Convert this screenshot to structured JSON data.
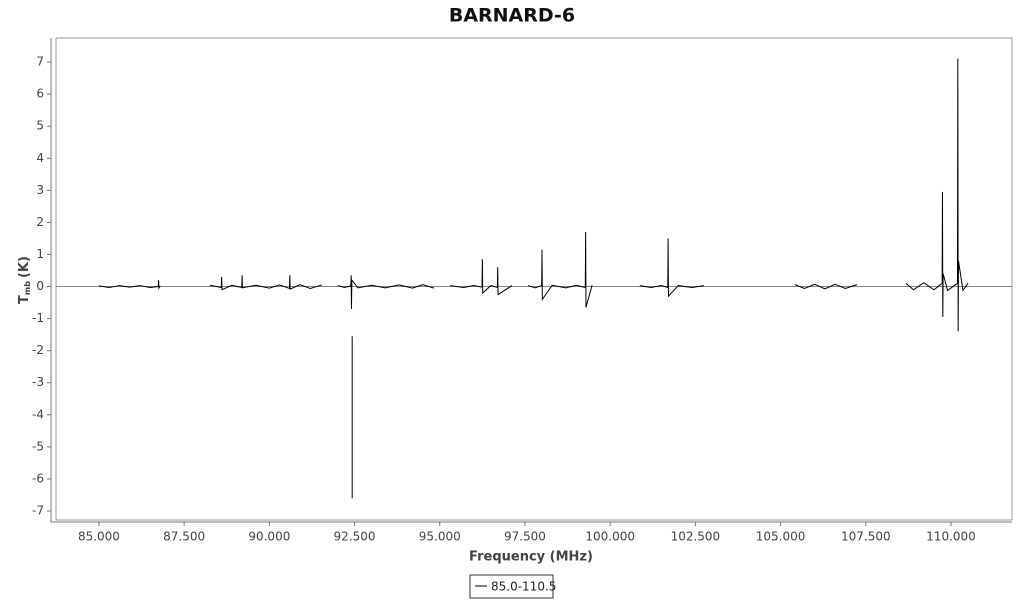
{
  "chart_data": {
    "type": "line",
    "title": "BARNARD-6",
    "x_label": "Frequency (MHz)",
    "y_label": "T",
    "y_label_sub": "mb",
    "y_label_unit": "(K)",
    "xlim": [
      83.74,
      111.79
    ],
    "ylim": [
      -7.28,
      7.75
    ],
    "xticks": [
      {
        "value": 85,
        "label": "85.000"
      },
      {
        "value": 87.5,
        "label": "87.500"
      },
      {
        "value": 90,
        "label": "90.000"
      },
      {
        "value": 92.5,
        "label": "92.500"
      },
      {
        "value": 95,
        "label": "95.000"
      },
      {
        "value": 97.5,
        "label": "97.500"
      },
      {
        "value": 100,
        "label": "100.000"
      },
      {
        "value": 102.5,
        "label": "102.500"
      },
      {
        "value": 105,
        "label": "105.000"
      },
      {
        "value": 107.5,
        "label": "107.500"
      },
      {
        "value": 110,
        "label": "110.000"
      }
    ],
    "yticks": [
      -7,
      -6,
      -5,
      -4,
      -3,
      -2,
      -1,
      0,
      1,
      2,
      3,
      4,
      5,
      6,
      7
    ],
    "zero_line": true,
    "x": [
      85.0,
      85.3,
      85.6,
      85.9,
      86.2,
      86.5,
      86.74,
      86.75,
      86.76,
      86.8,
      null,
      88.26,
      88.59,
      88.6,
      88.61,
      88.9,
      89.19,
      89.2,
      89.21,
      89.6,
      90.0,
      90.3,
      90.59,
      90.6,
      90.61,
      90.9,
      91.2,
      91.54,
      null,
      92.01,
      92.2,
      92.39,
      92.4,
      92.41,
      92.42,
      92.6,
      93.0,
      93.4,
      93.8,
      94.2,
      94.5,
      94.83,
      null,
      92.43,
      92.43,
      null,
      95.3,
      95.7,
      96.0,
      96.24,
      96.25,
      96.26,
      96.5,
      96.69,
      96.7,
      96.71,
      97.12,
      null,
      97.59,
      97.8,
      97.99,
      98.0,
      98.01,
      98.3,
      98.7,
      99.0,
      99.27,
      99.28,
      99.29,
      99.47,
      null,
      100.87,
      101.2,
      101.5,
      101.69,
      101.7,
      101.71,
      102.0,
      102.4,
      102.75,
      null,
      105.42,
      105.7,
      106.0,
      106.3,
      106.6,
      106.9,
      107.24,
      null,
      108.68,
      108.9,
      109.2,
      109.5,
      109.74,
      109.75,
      109.76,
      109.77,
      109.9,
      110.19,
      110.2,
      110.21,
      110.22,
      110.35,
      110.5
    ],
    "series": [
      {
        "name": "85.0-110.5",
        "color": "#000000",
        "values": [
          0.02,
          -0.03,
          0.03,
          -0.02,
          0.03,
          -0.03,
          0.0,
          0.2,
          -0.05,
          0.02,
          null,
          0.04,
          -0.03,
          0.3,
          -0.1,
          0.04,
          -0.03,
          0.35,
          -0.04,
          0.04,
          -0.05,
          0.05,
          -0.06,
          0.35,
          -0.08,
          0.06,
          -0.06,
          0.05,
          null,
          0.03,
          -0.03,
          0.02,
          0.35,
          -0.7,
          0.2,
          -0.04,
          0.04,
          -0.04,
          0.05,
          -0.05,
          0.06,
          -0.05,
          null,
          -1.55,
          -6.6,
          null,
          0.03,
          -0.03,
          0.03,
          -0.02,
          0.85,
          -0.2,
          0.03,
          -0.03,
          0.6,
          -0.25,
          0.03,
          null,
          0.03,
          -0.04,
          0.03,
          1.15,
          -0.4,
          0.04,
          -0.04,
          0.04,
          -0.03,
          1.7,
          -0.65,
          0.04,
          null,
          0.03,
          -0.03,
          0.03,
          -0.03,
          1.5,
          -0.3,
          0.03,
          -0.03,
          0.03,
          null,
          0.06,
          -0.06,
          0.07,
          -0.07,
          0.07,
          -0.06,
          0.06,
          null,
          0.1,
          -0.1,
          0.12,
          -0.1,
          0.1,
          2.95,
          -0.95,
          0.4,
          -0.12,
          0.1,
          7.1,
          -1.4,
          0.8,
          -0.12,
          0.1
        ]
      }
    ]
  }
}
